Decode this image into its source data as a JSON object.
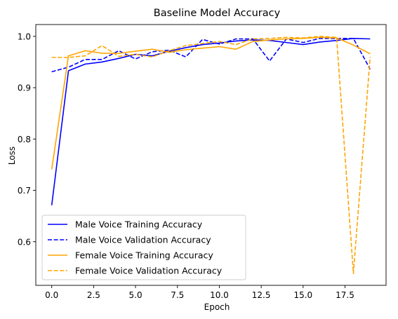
{
  "chart_data": {
    "type": "line",
    "title": "Baseline Model Accuracy",
    "xlabel": "Epoch",
    "ylabel": "Loss",
    "xlim": [
      -0.95,
      19.95
    ],
    "ylim": [
      0.515,
      1.023
    ],
    "xticks": [
      0.0,
      2.5,
      5.0,
      7.5,
      10.0,
      12.5,
      15.0,
      17.5
    ],
    "xtick_labels": [
      "0.0",
      "2.5",
      "5.0",
      "7.5",
      "10.0",
      "12.5",
      "15.0",
      "17.5"
    ],
    "yticks": [
      0.6,
      0.7,
      0.8,
      0.9,
      1.0
    ],
    "ytick_labels": [
      "0.6",
      "0.7",
      "0.8",
      "0.9",
      "1.0"
    ],
    "grid": false,
    "legend_position": "lower-left",
    "x": [
      0,
      1,
      2,
      3,
      4,
      5,
      6,
      7,
      8,
      9,
      10,
      11,
      12,
      13,
      14,
      15,
      16,
      17,
      18,
      19
    ],
    "series": [
      {
        "name": "Male Voice Training Accuracy",
        "color": "#0000ff",
        "dash": "solid",
        "values": [
          0.671,
          0.933,
          0.946,
          0.95,
          0.957,
          0.965,
          0.962,
          0.971,
          0.978,
          0.984,
          0.987,
          0.991,
          0.993,
          0.992,
          0.988,
          0.984,
          0.989,
          0.992,
          0.996,
          0.995
        ]
      },
      {
        "name": "Male Voice Validation Accuracy",
        "color": "#0000ff",
        "dash": "dashed",
        "values": [
          0.931,
          0.94,
          0.955,
          0.955,
          0.972,
          0.956,
          0.97,
          0.973,
          0.96,
          0.994,
          0.985,
          0.995,
          0.995,
          0.952,
          0.995,
          0.988,
          0.996,
          0.996,
          0.996,
          0.936
        ]
      },
      {
        "name": "Female Voice Training Accuracy",
        "color": "#ffa500",
        "dash": "solid",
        "values": [
          0.741,
          0.962,
          0.972,
          0.967,
          0.967,
          0.971,
          0.975,
          0.969,
          0.974,
          0.977,
          0.98,
          0.975,
          0.99,
          0.993,
          0.995,
          0.996,
          0.998,
          0.997,
          0.983,
          0.966
        ]
      },
      {
        "name": "Female Voice Validation Accuracy",
        "color": "#ffa500",
        "dash": "dashed",
        "values": [
          0.959,
          0.959,
          0.962,
          0.982,
          0.961,
          0.965,
          0.96,
          0.972,
          0.982,
          0.986,
          0.99,
          0.984,
          0.995,
          0.996,
          0.998,
          0.997,
          1.0,
          0.998,
          0.538,
          0.96
        ]
      }
    ]
  }
}
